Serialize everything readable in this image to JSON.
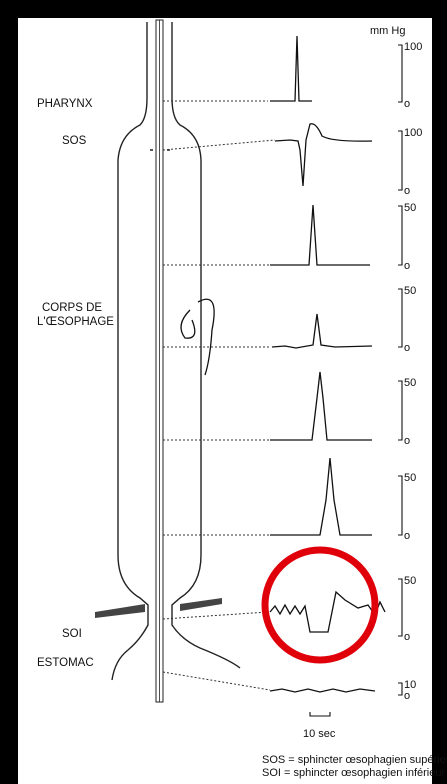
{
  "unit": "mm Hg",
  "labels": [
    "PHARYNX",
    "SOS",
    "CORPS DE",
    "L'ŒSOPHAGE",
    "SOI",
    "ESTOMAC"
  ],
  "scales": [
    [
      "100",
      "o"
    ],
    [
      "100",
      "o"
    ],
    [
      "50",
      "o"
    ],
    [
      "50",
      "o"
    ],
    [
      "50",
      "o"
    ],
    [
      "50",
      "o"
    ],
    [
      "50",
      "o"
    ],
    [
      "10",
      "o"
    ]
  ],
  "time_bar": "10 sec",
  "legend": [
    "SOS = sphincter œsophagien supérieur",
    "SOI = sphincter œsophagien inférieur"
  ]
}
